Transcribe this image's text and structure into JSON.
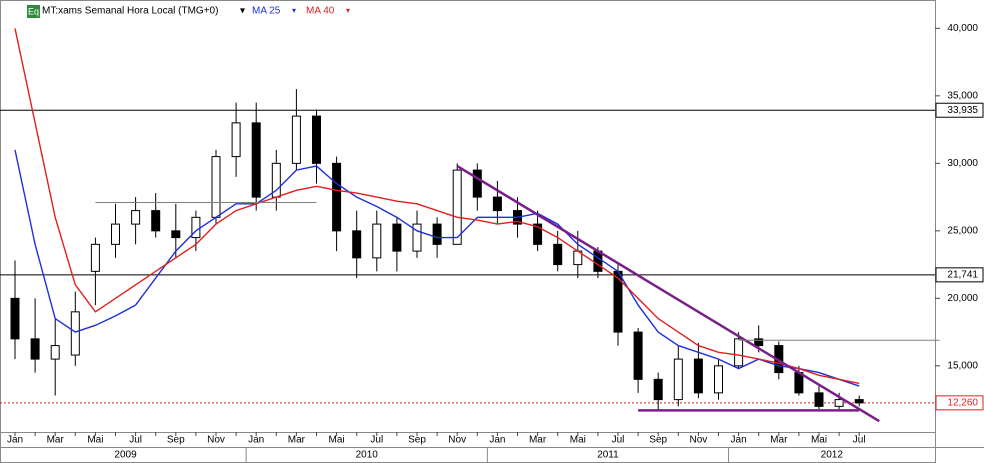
{
  "chart_data": {
    "type": "candlestick",
    "title": "MT:xams Semanal Hora Local (TMG+0)",
    "badge": "Eq",
    "categories": [
      "Jan",
      null,
      "Mar",
      null,
      "Mai",
      null,
      "Jul",
      null,
      "Sep",
      null,
      "Nov",
      null,
      "Jan",
      null,
      "Mar",
      null,
      "Mai",
      null,
      "Jul",
      null,
      "Sep",
      null,
      "Nov",
      null,
      "Jan",
      null,
      "Mar",
      null,
      "Mai",
      null,
      "Jul",
      null,
      "Sep",
      null,
      "Nov",
      null,
      "Jan",
      null,
      "Mar",
      null,
      "Mai",
      null,
      "Jul"
    ],
    "years": [
      "2009",
      "2010",
      "2011",
      "2012"
    ],
    "open": [
      20000,
      17000,
      15500,
      15800,
      22000,
      24000,
      25500,
      26500,
      25000,
      24500,
      26000,
      30500,
      33000,
      27500,
      30000,
      33500,
      30000,
      25000,
      23000,
      25500,
      23500,
      25500,
      24000,
      29500,
      27500,
      26500,
      25500,
      24000,
      22500,
      23500,
      22000,
      17500,
      14000,
      12500,
      15500,
      13000,
      15000,
      17000,
      16500,
      14500,
      13000,
      12000,
      12500
    ],
    "high": [
      22800,
      20000,
      18500,
      20500,
      24500,
      27000,
      27500,
      27800,
      27000,
      26500,
      31000,
      34500,
      34500,
      31000,
      35500,
      34000,
      30500,
      26500,
      26500,
      26000,
      26500,
      26000,
      30000,
      30000,
      28700,
      27500,
      26500,
      25000,
      25000,
      23800,
      22500,
      17800,
      14500,
      16500,
      16700,
      15500,
      17500,
      18000,
      16800,
      15000,
      13500,
      13000,
      12800
    ],
    "low": [
      15500,
      14500,
      12800,
      15000,
      19500,
      23000,
      24000,
      24500,
      23000,
      23500,
      25500,
      29000,
      26500,
      26500,
      29500,
      28500,
      23500,
      21500,
      22000,
      22000,
      23000,
      23000,
      24000,
      26500,
      25500,
      24500,
      23500,
      22000,
      21500,
      21500,
      16500,
      13000,
      11700,
      12000,
      12600,
      12500,
      14800,
      16000,
      14000,
      12800,
      11800,
      11800,
      12000
    ],
    "close": [
      17000,
      15500,
      16500,
      19000,
      24000,
      25500,
      26500,
      25000,
      24500,
      26000,
      30500,
      33000,
      27500,
      30000,
      33500,
      30000,
      25000,
      23000,
      25500,
      23500,
      25500,
      24000,
      29500,
      27500,
      26500,
      25500,
      24000,
      22500,
      23500,
      22000,
      17500,
      14000,
      12500,
      15500,
      13000,
      15000,
      17000,
      16500,
      14500,
      13000,
      12000,
      12500,
      12260
    ],
    "series": [
      {
        "name": "MA 25",
        "color": "#1f2fe0",
        "values": [
          31000,
          24000,
          18500,
          17500,
          18000,
          18700,
          19500,
          21500,
          23500,
          25000,
          26000,
          27000,
          27000,
          28000,
          29500,
          29800,
          28500,
          27500,
          26800,
          26000,
          25000,
          24500,
          24500,
          26000,
          26000,
          26000,
          26300,
          25500,
          24000,
          23000,
          22000,
          19500,
          17500,
          16500,
          16000,
          15500,
          14800,
          15500,
          15000,
          14800,
          14500,
          14000,
          13500
        ]
      },
      {
        "name": "MA 40",
        "color": "#e02020",
        "values": [
          40000,
          33000,
          26000,
          21000,
          19000,
          20000,
          21000,
          22000,
          23000,
          24000,
          25500,
          26500,
          27000,
          27500,
          28000,
          28300,
          28000,
          27800,
          27500,
          27200,
          27000,
          26500,
          26000,
          25800,
          25500,
          25700,
          25300,
          24500,
          23500,
          22500,
          21500,
          20000,
          18500,
          17500,
          16500,
          16000,
          15800,
          15500,
          15200,
          14800,
          14300,
          14000,
          13700
        ]
      }
    ],
    "levels": [
      {
        "value": 33935,
        "label": "33,935",
        "color": "#000000",
        "style": "solid"
      },
      {
        "value": 21741,
        "label": "21,741",
        "color": "#000000",
        "style": "solid"
      },
      {
        "value": 12260,
        "label": "12,260",
        "color": "#e02020",
        "style": "dotted"
      }
    ],
    "trendlines": [
      {
        "color": "#7a1f8a",
        "start": [
          "2010-11",
          29800
        ],
        "end": [
          "2012-08",
          10900
        ]
      },
      {
        "color": "#7a1f8a",
        "start": [
          "2011-08",
          11700
        ],
        "end": [
          "2012-07",
          11700
        ]
      },
      {
        "color": "#808080",
        "start": [
          "2009-05",
          27100
        ],
        "end": [
          "2010-04",
          27100
        ]
      },
      {
        "color": "#808080",
        "start": [
          "2012-01",
          16900
        ],
        "end": [
          "2012-11",
          16900
        ]
      }
    ],
    "ylim": [
      10100,
      42100
    ],
    "yticks": [
      {
        "value": 15000,
        "label": "15,000"
      },
      {
        "value": 20000,
        "label": "20,000"
      },
      {
        "value": 25000,
        "label": "25,000"
      },
      {
        "value": 30000,
        "label": "30,000"
      },
      {
        "value": 35000,
        "label": "35,000"
      },
      {
        "value": 40000,
        "label": "40,000"
      }
    ]
  }
}
